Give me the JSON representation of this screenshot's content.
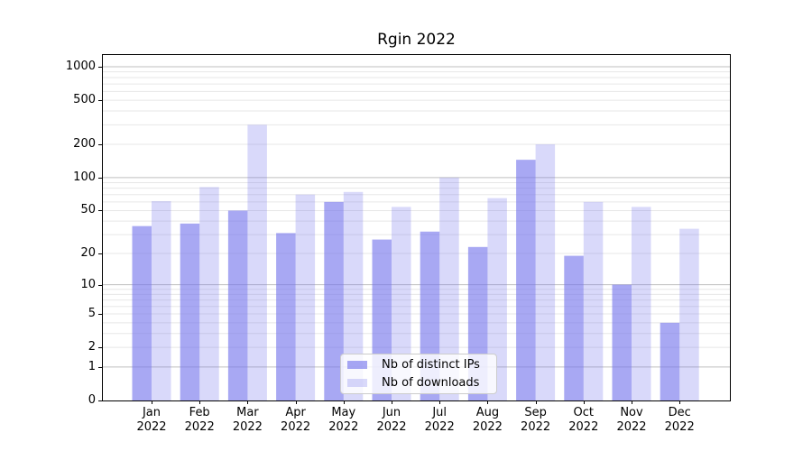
{
  "chart_data": {
    "type": "bar",
    "title": "Rgin 2022",
    "categories": [
      "Jan",
      "Feb",
      "Mar",
      "Apr",
      "May",
      "Jun",
      "Jul",
      "Aug",
      "Sep",
      "Oct",
      "Nov",
      "Dec"
    ],
    "x_tick_year": "2022",
    "series": [
      {
        "name": "Nb of distinct IPs",
        "color": "#7373eb",
        "rgba": "rgba(115,115,235,0.62)",
        "values": [
          36,
          38,
          50,
          31,
          60,
          27,
          32,
          23,
          145,
          19,
          10,
          4
        ]
      },
      {
        "name": "Nb of downloads",
        "color": "#7373eb",
        "rgba": "rgba(115,115,235,0.27)",
        "values": [
          61,
          82,
          300,
          70,
          74,
          54,
          100,
          65,
          200,
          60,
          54,
          34
        ]
      }
    ],
    "y_ticks": [
      0,
      1,
      2,
      5,
      10,
      20,
      50,
      100,
      200,
      500,
      1000
    ],
    "y_scale": "log1p",
    "ylim": [
      0,
      1275
    ],
    "grid": true,
    "legend_position": "lower-center-inside",
    "colors": {
      "grid_major": "#bfbfbf",
      "grid_minor": "#e7e7e7",
      "axis": "#000000",
      "background": "#ffffff"
    }
  }
}
